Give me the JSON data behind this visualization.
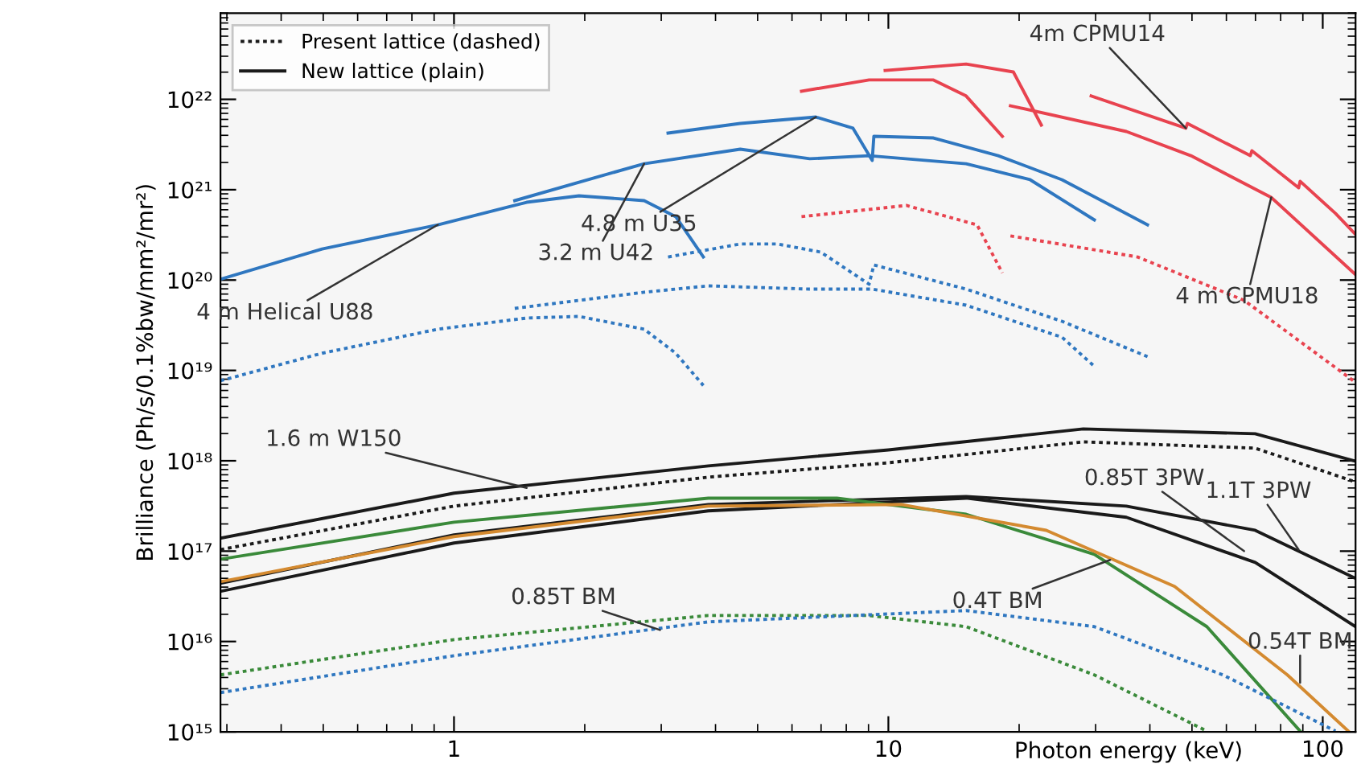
{
  "chart_data": {
    "type": "line",
    "log": "xy",
    "legend": "top left",
    "grid": false,
    "xlabel": "Photon energy (keV)",
    "ylabel": "Brilliance (Ph/s/0.1%bw/mm²/mr²)",
    "xlim": [
      0.29,
      119
    ],
    "xticks": [
      1,
      10,
      100
    ],
    "ylim": [
      1000000000000000.0,
      9e+22
    ],
    "yticks": [
      {
        "value": 1000000000000000.0,
        "label": "10¹⁵"
      },
      {
        "value": 1e+16,
        "label": "10¹⁶"
      },
      {
        "value": 1e+17,
        "label": "10¹⁷"
      },
      {
        "value": 1e+18,
        "label": "10¹⁸"
      },
      {
        "value": 1e+19,
        "label": "10¹⁹"
      },
      {
        "value": 1e+20,
        "label": "10²⁰"
      },
      {
        "value": 1e+21,
        "label": "10²¹"
      },
      {
        "value": 1e+22,
        "label": "10²²"
      }
    ],
    "series": [
      {
        "name": "Present lattice (dashed)",
        "color": "#1a1a1a",
        "line_style": "dotted",
        "x": [
          0.29,
          1,
          3.85,
          10,
          28.1,
          69.9,
          119
        ],
        "values": [
          1.04e+17,
          3.15e+17,
          6.59e+17,
          9.5e+17,
          1.62e+18,
          1.38e+18,
          5.82e+17
        ]
      },
      {
        "name": "New lattice (plain)",
        "color": "#1a1a1a",
        "line_style": "solid",
        "x": [
          0.29,
          1,
          3.85,
          10,
          28.1,
          69.9,
          119
        ],
        "values": [
          1.39e+17,
          4.38e+17,
          8.77e+17,
          1.32e+18,
          2.25e+18,
          1.99e+18,
          9.9e+17
        ]
      },
      {
        "color": "#2f77c0",
        "line_style": "solid",
        "x": [
          0.29,
          0.497,
          0.918,
          1.47,
          1.94,
          2.74,
          3.24,
          3.75
        ],
        "values": [
          1.02e+20,
          2.21e+20,
          4.09e+20,
          7.26e+20,
          8.55e+20,
          7.57e+20,
          5.03e+20,
          1.8e+20
        ]
      },
      {
        "color": "#2f77c0",
        "line_style": "solid",
        "x": [
          1.38,
          2.74,
          4.56,
          6.59,
          9.03,
          15.1,
          21.2,
          29.8
        ],
        "values": [
          7.57e+20,
          1.94e+21,
          2.81e+21,
          2.2e+21,
          2.38e+21,
          1.94e+21,
          1.29e+21,
          4.63e+20
        ]
      },
      {
        "color": "#2f77c0",
        "line_style": "solid",
        "x": [
          3.11,
          4.56,
          6.81,
          8.29,
          9.18,
          9.26,
          12.7,
          17.9,
          25.1,
          39.5
        ],
        "values": [
          4.23e+21,
          5.41e+21,
          6.37e+21,
          4.79e+21,
          2.11e+21,
          3.9e+21,
          3.74e+21,
          2.38e+21,
          1.29e+21,
          4.09e+20
        ]
      },
      {
        "color": "#2f77c0",
        "line_style": "dotted",
        "x": [
          0.29,
          0.497,
          0.918,
          1.47,
          1.94,
          2.74,
          3.24,
          3.75
        ],
        "values": [
          7.69e+18,
          1.55e+19,
          2.86e+19,
          3.8e+19,
          3.96e+19,
          2.86e+19,
          1.55e+19,
          6.81e+18
        ]
      },
      {
        "color": "#2f77c0",
        "line_style": "dotted",
        "x": [
          1.38,
          2.74,
          3.85,
          6.59,
          9.18,
          15.1,
          25.1,
          29.8
        ],
        "values": [
          4.86e+19,
          7.33e+19,
          8.63e+19,
          7.94e+19,
          7.94e+19,
          5.27e+19,
          2.33e+19,
          1.11e+19
        ]
      },
      {
        "color": "#2f77c0",
        "line_style": "dotted",
        "x": [
          3.11,
          4.56,
          5.55,
          6.99,
          9.03,
          9.26,
          15.1,
          25.1,
          39.5
        ],
        "values": [
          1.8e+20,
          2.51e+20,
          2.51e+20,
          2.04e+20,
          9e+19,
          1.47e+20,
          7.94e+19,
          3.5e+19,
          1.42e+19
        ]
      },
      {
        "color": "#e8434f",
        "line_style": "solid",
        "x": [
          6.31,
          9.03,
          12.7,
          15.1,
          18.3
        ],
        "values": [
          1.23e+22,
          1.64e+22,
          1.64e+22,
          1.09e+22,
          3.9e+21
        ]
      },
      {
        "color": "#e8434f",
        "line_style": "solid",
        "x": [
          9.83,
          15.1,
          19.4,
          22.5
        ],
        "values": [
          2.09e+22,
          2.46e+22,
          2.01e+22,
          5.19e+21
        ]
      },
      {
        "color": "#e8434f",
        "line_style": "solid",
        "x": [
          19.1,
          35.3,
          49.7,
          76.1,
          119
        ],
        "values": [
          8.49e+21,
          4.41e+21,
          2.38e+21,
          8.22e+20,
          1.15e+20
        ]
      },
      {
        "color": "#e8434f",
        "line_style": "solid",
        "x": [
          29.3,
          48.4,
          48.8,
          68.1,
          68.7,
          88.0,
          88.7,
          107,
          119
        ],
        "values": [
          1.09e+22,
          4.79e+21,
          5.41e+21,
          2.38e+21,
          2.7e+21,
          1.05e+21,
          1.24e+21,
          5.46e+20,
          3.2e+20
        ]
      },
      {
        "color": "#e8434f",
        "line_style": "dotted",
        "x": [
          6.31,
          11.0,
          16.0,
          18.3
        ],
        "values": [
          5.03e+20,
          6.7e+20,
          4.09e+20,
          1.2e+20
        ]
      },
      {
        "color": "#e8434f",
        "line_style": "dotted",
        "x": [
          19.1,
          37.5,
          65.9,
          119
        ],
        "values": [
          3.08e+20,
          1.8e+20,
          5.97e+19,
          7.38e+18
        ]
      },
      {
        "color": "#1a1a1a",
        "line_style": "solid",
        "x": [
          0.29,
          1,
          3.85,
          15.1,
          35.3,
          69.9,
          119
        ],
        "values": [
          4.41e+16,
          1.51e+17,
          3.28e+17,
          4.03e+17,
          3.15e+17,
          1.7e+17,
          4.99e+16
        ]
      },
      {
        "color": "#1a1a1a",
        "line_style": "solid",
        "x": [
          0.29,
          1,
          3.85,
          15.1,
          35.3,
          69.9,
          119
        ],
        "values": [
          3.59e+16,
          1.23e+17,
          2.79e+17,
          3.86e+17,
          2.37e+17,
          7.5e+16,
          1.46e+16
        ]
      },
      {
        "color": "#3a8a3a",
        "line_style": "solid",
        "x": [
          0.29,
          1,
          3.85,
          7.61,
          15.1,
          29.8,
          54.1,
          88.7
        ],
        "values": [
          8.15e+16,
          2.09e+17,
          3.86e+17,
          3.86e+17,
          2.56e+17,
          9.2e+16,
          1.46e+16,
          1020000000000000.0
        ]
      },
      {
        "color": "#d48a30",
        "line_style": "solid",
        "x": [
          0.29,
          1,
          3.85,
          10.7,
          23.1,
          45.6,
          82.9,
          114.5
        ],
        "values": [
          4.59e+16,
          1.45e+17,
          3.15e+17,
          3.28e+17,
          1.7e+17,
          4.06e+16,
          4270000000000000.0,
          1020000000000000.0
        ]
      },
      {
        "color": "#3a8a3a",
        "line_style": "dotted",
        "x": [
          0.29,
          1,
          3.85,
          9.03,
          15.1,
          29.8,
          54.1
        ],
        "values": [
          4270000000000000.0,
          1.05e+16,
          1.94e+16,
          1.94e+16,
          1.46e+16,
          4270000000000000.0,
          1020000000000000.0
        ]
      },
      {
        "color": "#2f77c0",
        "line_style": "dotted",
        "x": [
          0.29,
          1,
          3.85,
          15.1,
          29.8,
          58.9,
          107
        ],
        "values": [
          2720000000000000.0,
          6970000000000000.0,
          1.65e+16,
          2.2e+16,
          1.46e+16,
          4270000000000000.0,
          1020000000000000.0
        ]
      }
    ],
    "annotations": [
      {
        "text": "4m CPMU14",
        "x": 48.4,
        "y": 4.79e+21
      },
      {
        "text": "4 m CPMU18",
        "x": 76.1,
        "y": 8.22e+20
      },
      {
        "text": "4.8 m U35",
        "x": 6.81,
        "y": 6.37e+21
      },
      {
        "text": "3.2 m U42",
        "x": 2.74,
        "y": 1.94e+21
      },
      {
        "text": "4 m Helical U88",
        "x": 0.918,
        "y": 4.09e+20
      },
      {
        "text": "1.6 m W150",
        "x": 1.47,
        "y": 5e+17
      },
      {
        "text": "0.85T 3PW",
        "x": 65.9,
        "y": 1e+17
      },
      {
        "text": "1.1T 3PW",
        "x": 88.0,
        "y": 1.04e+17
      },
      {
        "text": "0.4T BM",
        "x": 32.4,
        "y": 8e+16
      },
      {
        "text": "0.54T BM",
        "x": 88.7,
        "y": 3500000000000000.0
      },
      {
        "text": "0.85T BM",
        "x": 2.98,
        "y": 1.34e+16
      }
    ]
  }
}
